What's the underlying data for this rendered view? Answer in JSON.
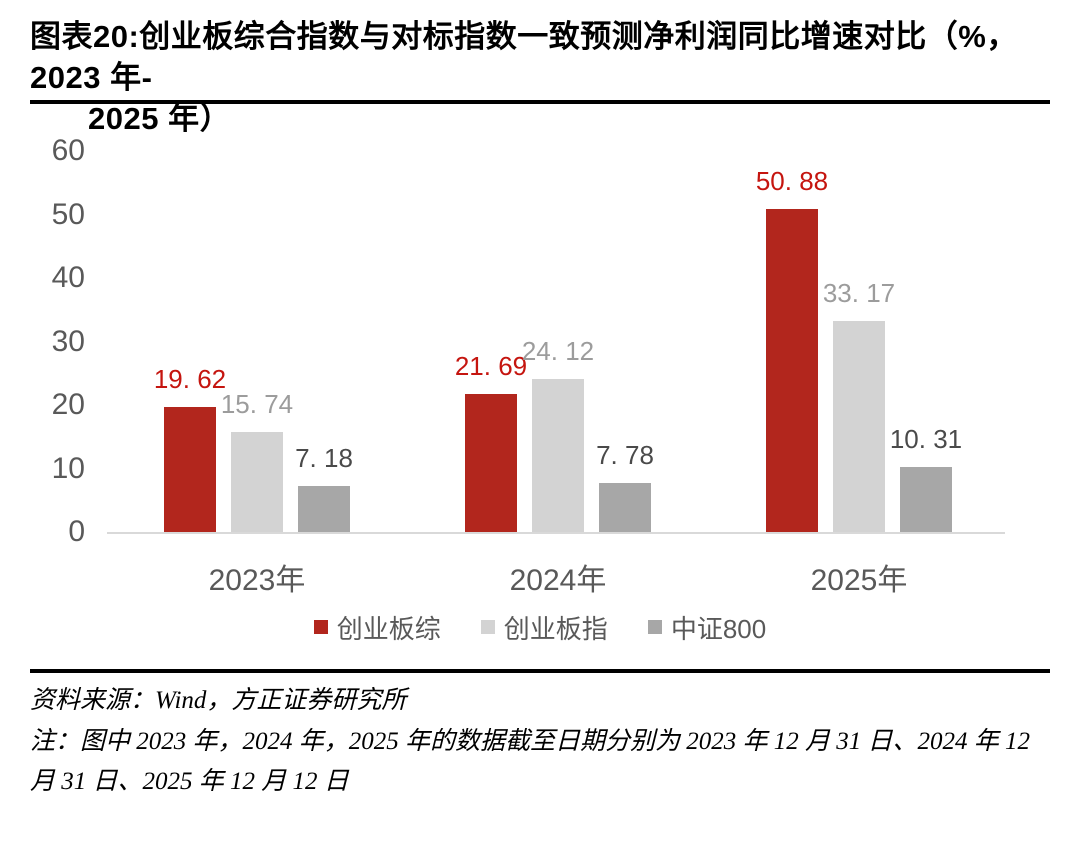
{
  "title": {
    "line1": "图表20:创业板综合指数与对标指数一致预测净利润同比增速对比（%，2023 年-",
    "line2": "2025 年）"
  },
  "chart_data": {
    "type": "bar",
    "categories": [
      "2023年",
      "2024年",
      "2025年"
    ],
    "series": [
      {
        "name": "创业板综",
        "values": [
          19.62,
          21.69,
          50.88
        ],
        "bar_color": "#b2261d",
        "label_color": "#c5150f"
      },
      {
        "name": "创业板指",
        "values": [
          15.74,
          24.12,
          33.17
        ],
        "bar_color": "#d3d3d3",
        "label_color": "#9c9c9c"
      },
      {
        "name": "中证800",
        "values": [
          7.18,
          7.78,
          10.31
        ],
        "bar_color": "#a7a7a7",
        "label_color": "#4a4a4a"
      }
    ],
    "title": "",
    "xlabel": "",
    "ylabel": "",
    "ylim": [
      0,
      60
    ],
    "yticks": [
      0,
      10,
      20,
      30,
      40,
      50,
      60
    ],
    "grid": false,
    "value_labels": true,
    "legend_position": "bottom",
    "axis_color": "#d9d9d9",
    "tick_label_color": "#595959",
    "category_label_color": "#595959",
    "legend_label_color": "#595959"
  },
  "footer": {
    "source": "资料来源：Wind，方正证券研究所",
    "note": "注：图中 2023 年，2024 年，2025 年的数据截至日期分别为 2023 年 12 月 31 日、2024 年 12 月 31 日、2025 年 12 月 12 日"
  }
}
